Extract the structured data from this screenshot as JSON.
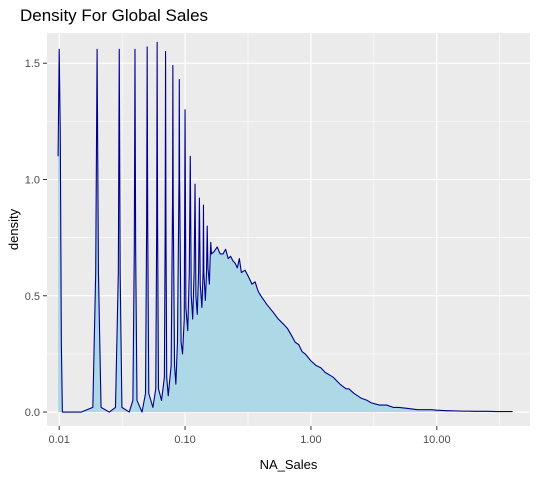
{
  "chart_data": {
    "type": "area",
    "title": "Density For Global Sales",
    "xlabel": "NA_Sales",
    "ylabel": "density",
    "x_scale": "log10",
    "xlim": [
      0.008,
      55
    ],
    "ylim": [
      -0.06,
      1.63
    ],
    "x_ticks": [
      0.01,
      0.1,
      1,
      10
    ],
    "x_tick_labels": [
      "0.01",
      "0.10",
      "1.00",
      "10.00"
    ],
    "y_ticks": [
      0,
      0.5,
      1,
      1.5
    ],
    "y_tick_labels": [
      "0.0",
      "0.5",
      "1.0",
      "1.5"
    ],
    "grid": true,
    "legend": "none",
    "colors": {
      "panel": "#ebebeb",
      "grid": "#ffffff",
      "fill": "#add8e6",
      "line": "#00008b"
    },
    "series": [
      {
        "x": [
          0.0098,
          0.01,
          0.0102,
          0.0104,
          0.0106,
          0.012,
          0.015,
          0.0185,
          0.0195,
          0.02,
          0.0205,
          0.0215,
          0.025,
          0.028,
          0.0295,
          0.03,
          0.0305,
          0.0315,
          0.036,
          0.0385,
          0.0395,
          0.04,
          0.0405,
          0.0415,
          0.0455,
          0.0485,
          0.0495,
          0.05,
          0.0505,
          0.0515,
          0.0555,
          0.0585,
          0.0595,
          0.06,
          0.0605,
          0.0615,
          0.065,
          0.0685,
          0.0695,
          0.07,
          0.0705,
          0.0715,
          0.0735,
          0.0775,
          0.0795,
          0.08,
          0.0805,
          0.0825,
          0.0845,
          0.087,
          0.0895,
          0.09,
          0.0905,
          0.093,
          0.0955,
          0.0985,
          0.1,
          0.1015,
          0.105,
          0.108,
          0.11,
          0.112,
          0.115,
          0.118,
          0.12,
          0.122,
          0.125,
          0.128,
          0.13,
          0.132,
          0.136,
          0.139,
          0.14,
          0.141,
          0.145,
          0.148,
          0.15,
          0.152,
          0.156,
          0.158,
          0.16,
          0.162,
          0.17,
          0.18,
          0.19,
          0.2,
          0.21,
          0.22,
          0.23,
          0.24,
          0.25,
          0.26,
          0.27,
          0.28,
          0.3,
          0.32,
          0.34,
          0.36,
          0.38,
          0.4,
          0.45,
          0.5,
          0.55,
          0.6,
          0.65,
          0.7,
          0.75,
          0.8,
          0.85,
          0.9,
          1.0,
          1.1,
          1.2,
          1.3,
          1.4,
          1.5,
          1.7,
          1.9,
          2.0,
          2.2,
          2.5,
          2.8,
          3.0,
          3.5,
          4.0,
          4.5,
          5.0,
          6.0,
          7.0,
          8.0,
          9.0,
          10,
          12,
          14,
          16,
          18,
          20,
          25,
          30,
          35,
          40
        ],
        "values": [
          1.1,
          1.56,
          1.2,
          0.3,
          0.0,
          0.0,
          0.0,
          0.02,
          0.6,
          1.56,
          0.6,
          0.02,
          0.0,
          0.02,
          0.6,
          1.56,
          0.6,
          0.02,
          0.0,
          0.05,
          0.7,
          1.56,
          0.7,
          0.05,
          0.0,
          0.08,
          0.8,
          1.57,
          0.8,
          0.08,
          0.02,
          0.1,
          0.8,
          1.59,
          0.8,
          0.1,
          0.05,
          0.15,
          0.8,
          1.55,
          0.8,
          0.15,
          0.07,
          0.2,
          0.9,
          1.49,
          0.9,
          0.2,
          0.12,
          0.3,
          1.0,
          1.43,
          1.0,
          0.3,
          0.25,
          0.4,
          1.3,
          0.45,
          0.35,
          0.6,
          1.1,
          0.5,
          0.4,
          0.6,
          0.98,
          0.5,
          0.42,
          0.6,
          0.92,
          0.55,
          0.45,
          0.6,
          0.89,
          0.6,
          0.48,
          0.6,
          0.8,
          0.62,
          0.55,
          0.65,
          0.73,
          0.68,
          0.69,
          0.71,
          0.68,
          0.68,
          0.7,
          0.66,
          0.67,
          0.65,
          0.64,
          0.62,
          0.66,
          0.6,
          0.61,
          0.58,
          0.55,
          0.56,
          0.52,
          0.5,
          0.46,
          0.43,
          0.4,
          0.38,
          0.36,
          0.33,
          0.3,
          0.29,
          0.26,
          0.25,
          0.22,
          0.2,
          0.19,
          0.17,
          0.16,
          0.15,
          0.12,
          0.1,
          0.1,
          0.08,
          0.06,
          0.05,
          0.04,
          0.03,
          0.03,
          0.02,
          0.02,
          0.015,
          0.01,
          0.01,
          0.01,
          0.008,
          0.006,
          0.005,
          0.004,
          0.004,
          0.003,
          0.003,
          0.002,
          0.002,
          0.002
        ]
      }
    ]
  }
}
